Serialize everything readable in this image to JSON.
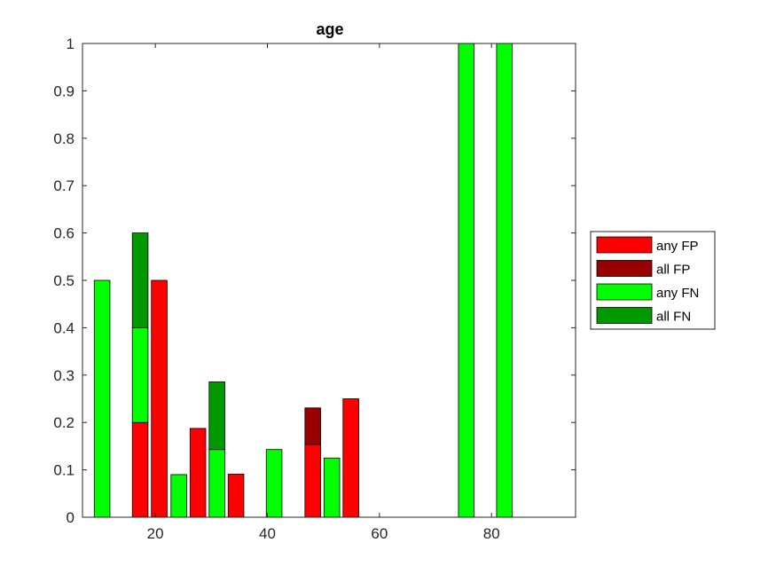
{
  "chart_data": {
    "type": "bar",
    "title": "age",
    "xlabel": "",
    "ylabel": "",
    "xlim": [
      7,
      95
    ],
    "ylim": [
      0,
      1
    ],
    "x_ticks": [
      20,
      40,
      60,
      80
    ],
    "y_ticks": [
      0,
      0.1,
      0.2,
      0.3,
      0.4,
      0.5,
      0.6,
      0.7,
      0.8,
      0.9,
      1
    ],
    "grid": false,
    "legend_position": "outside-right",
    "series": [
      {
        "name": "any FP",
        "color": "#ff0000"
      },
      {
        "name": "all FP",
        "color": "#990000"
      },
      {
        "name": "any FN",
        "color": "#00ff00"
      },
      {
        "name": "all FN",
        "color": "#009900"
      }
    ],
    "bars": [
      {
        "x": 10.5,
        "segments": [
          {
            "series": "any FN",
            "from": 0,
            "to": 0.5
          }
        ]
      },
      {
        "x": 17.3,
        "segments": [
          {
            "series": "any FP",
            "from": 0,
            "to": 0.2
          },
          {
            "series": "any FN",
            "from": 0.2,
            "to": 0.4
          },
          {
            "series": "all FN",
            "from": 0.4,
            "to": 0.6
          }
        ]
      },
      {
        "x": 20.7,
        "segments": [
          {
            "series": "any FP",
            "from": 0,
            "to": 0.5
          }
        ]
      },
      {
        "x": 24.2,
        "segments": [
          {
            "series": "any FN",
            "from": 0,
            "to": 0.09
          }
        ]
      },
      {
        "x": 27.6,
        "segments": [
          {
            "series": "any FP",
            "from": 0,
            "to": 0.1875
          }
        ]
      },
      {
        "x": 31.0,
        "segments": [
          {
            "series": "any FN",
            "from": 0,
            "to": 0.1429
          },
          {
            "series": "all FN",
            "from": 0.1429,
            "to": 0.2857
          }
        ]
      },
      {
        "x": 34.4,
        "segments": [
          {
            "series": "any FP",
            "from": 0,
            "to": 0.0909
          }
        ]
      },
      {
        "x": 41.2,
        "segments": [
          {
            "series": "any FN",
            "from": 0,
            "to": 0.1429
          }
        ]
      },
      {
        "x": 48.1,
        "segments": [
          {
            "series": "any FP",
            "from": 0,
            "to": 0.1538
          },
          {
            "series": "all FP",
            "from": 0.1538,
            "to": 0.2308
          }
        ]
      },
      {
        "x": 51.5,
        "segments": [
          {
            "series": "any FN",
            "from": 0,
            "to": 0.125
          }
        ]
      },
      {
        "x": 54.9,
        "segments": [
          {
            "series": "any FP",
            "from": 0,
            "to": 0.25
          }
        ]
      },
      {
        "x": 75.5,
        "segments": [
          {
            "series": "any FN",
            "from": 0,
            "to": 1
          }
        ]
      },
      {
        "x": 82.3,
        "segments": [
          {
            "series": "any FN",
            "from": 0,
            "to": 1
          }
        ]
      }
    ]
  }
}
